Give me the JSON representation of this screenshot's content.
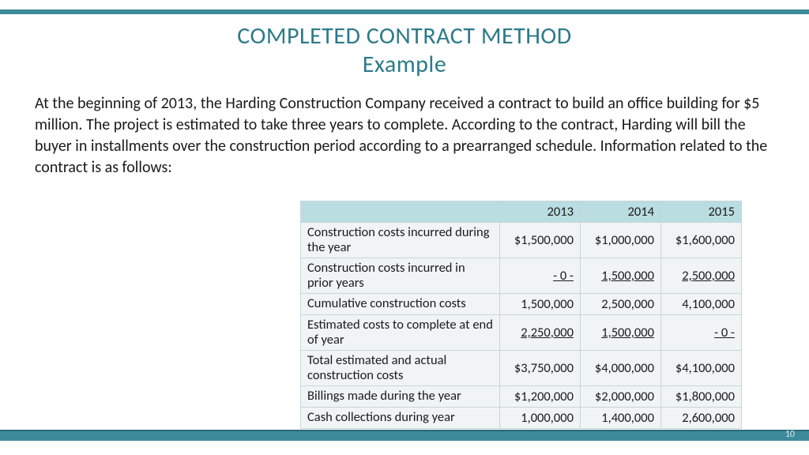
{
  "title": {
    "line1": "COMPLETED CONTRACT METHOD",
    "line2": "Example",
    "color": "#2d7a8a",
    "fontsize": 30
  },
  "body": {
    "text": "At the beginning of 2013, the Harding Construction Company received a contract to build an office building for $5 million.  The project is estimated to take three years to complete.  According to the contract, Harding will bill the buyer in installments over the construction period according to a prearranged schedule.  Information related to the contract is as follows:",
    "fontsize": 20,
    "color": "#1a1a1a"
  },
  "table": {
    "header_bg": "#b9dde1",
    "cell_bg": "#f0f4f5",
    "border_color": "#c9d6d9",
    "columns": [
      "",
      "2013",
      "2014",
      "2015"
    ],
    "rows": [
      {
        "label": "Construction costs incurred during the year",
        "values": [
          "$1,500,000",
          "$1,000,000",
          "$1,600,000"
        ],
        "underline": [
          false,
          false,
          false
        ]
      },
      {
        "label": "Construction costs incurred in prior years",
        "values": [
          "     - 0 -",
          "1,500,000",
          "2,500,000"
        ],
        "underline": [
          true,
          true,
          true
        ]
      },
      {
        "label": "  Cumulative construction costs",
        "values": [
          "1,500,000",
          "2,500,000",
          "4,100,000"
        ],
        "underline": [
          false,
          false,
          false
        ]
      },
      {
        "label": " Estimated costs to complete at end of year",
        "values": [
          "2,250,000",
          "1,500,000",
          "     - 0 -"
        ],
        "underline": [
          true,
          true,
          true
        ]
      },
      {
        "label": " Total estimated and actual construction costs",
        "values": [
          "$3,750,000",
          "$4,000,000",
          "$4,100,000"
        ],
        "underline": [
          false,
          false,
          false
        ]
      },
      {
        "label": "  Billings made during the year",
        "values": [
          "$1,200,000",
          "$2,000,000",
          "$1,800,000"
        ],
        "underline": [
          false,
          false,
          false
        ]
      },
      {
        "label": "  Cash collections during year",
        "values": [
          "1,000,000",
          "1,400,000",
          "2,600,000"
        ],
        "underline": [
          false,
          false,
          false
        ]
      }
    ]
  },
  "page_number": "10",
  "accent_color": "#3c8a9a"
}
